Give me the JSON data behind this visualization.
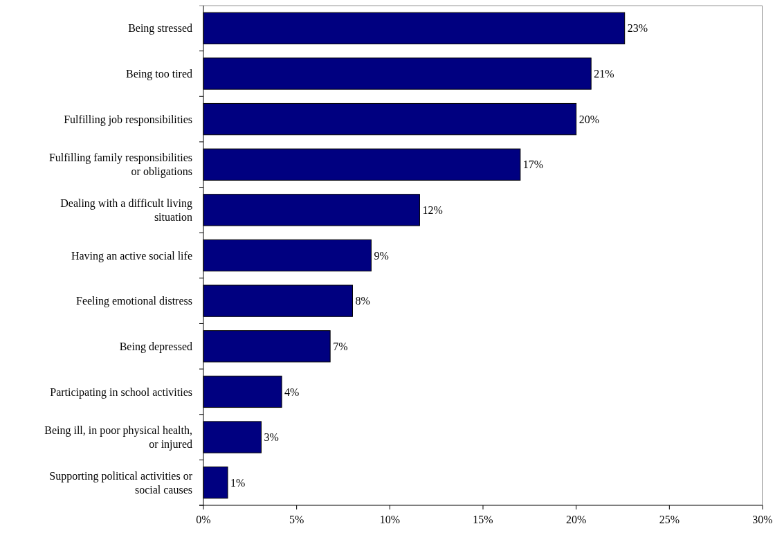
{
  "chart_data": {
    "type": "bar",
    "orientation": "horizontal",
    "categories": [
      "Being stressed",
      "Being too tired",
      "Fulfilling job responsibilities",
      "Fulfilling family responsibilities or obligations",
      "Dealing with a difficult living situation",
      "Having an active social life",
      "Feeling emotional distress",
      "Being depressed",
      "Participating in school activities",
      "Being ill, in poor physical health, or injured",
      "Supporting political activities or social causes"
    ],
    "values": [
      22.6,
      20.8,
      20.0,
      17.0,
      11.6,
      9.0,
      8.0,
      6.8,
      4.2,
      3.1,
      1.3
    ],
    "value_labels": [
      "23%",
      "21%",
      "20%",
      "17%",
      "12%",
      "9%",
      "8%",
      "7%",
      "4%",
      "3%",
      "1%"
    ],
    "color": "#000080",
    "xlim": [
      0,
      30
    ],
    "xticks": [
      {
        "value": 0,
        "label": "0%"
      },
      {
        "value": 5,
        "label": "5%"
      },
      {
        "value": 10,
        "label": "10%"
      },
      {
        "value": 15,
        "label": "15%"
      },
      {
        "value": 20,
        "label": "20%"
      },
      {
        "value": 25,
        "label": "25%"
      },
      {
        "value": 30,
        "label": "30%"
      }
    ],
    "grid": false
  }
}
